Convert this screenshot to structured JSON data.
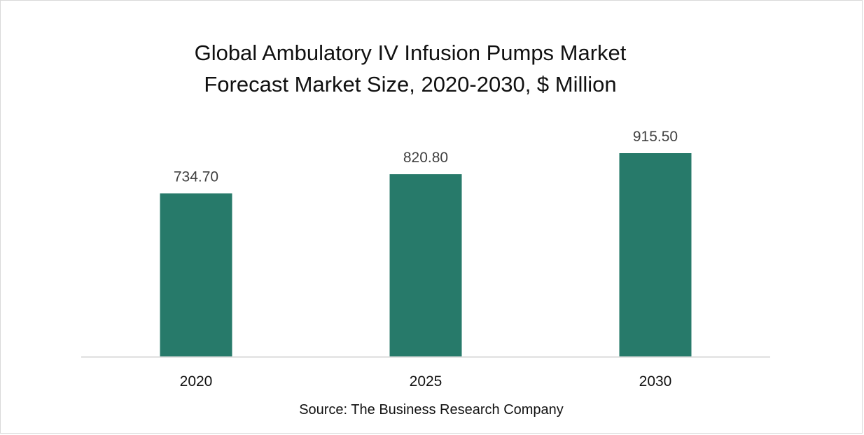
{
  "chart_data": {
    "type": "bar",
    "title_lines": [
      "Global Ambulatory IV Infusion Pumps Market",
      "Forecast Market Size, 2020-2030, $ Million"
    ],
    "categories": [
      "2020",
      "2025",
      "2030"
    ],
    "values": [
      734.7,
      820.8,
      915.5
    ],
    "value_labels": [
      "734.70",
      "820.80",
      "915.50"
    ],
    "xlabel": "",
    "ylabel": "",
    "ylim": [
      0,
      915.5
    ],
    "grid": false,
    "legend": "none",
    "bar_color": "#277A6A",
    "axis_color": "#d9d9d9",
    "label_color": "#404040"
  },
  "source": "Source: The Business Research Company"
}
